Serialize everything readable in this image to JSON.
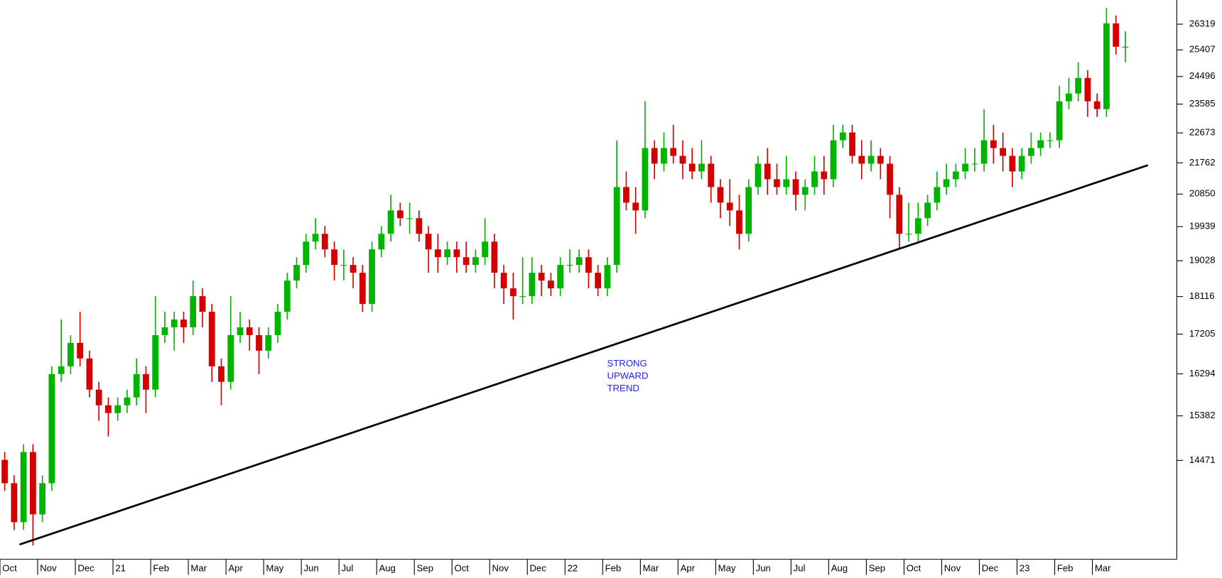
{
  "chart_data": {
    "type": "candlestick",
    "categories": [
      "Oct",
      null,
      null,
      null,
      "Nov",
      null,
      null,
      null,
      "Dec",
      null,
      null,
      null,
      "21",
      null,
      null,
      null,
      "Feb",
      null,
      null,
      null,
      "Mar",
      null,
      null,
      null,
      "Apr",
      null,
      null,
      null,
      "May",
      null,
      null,
      null,
      "Jun",
      null,
      null,
      null,
      "Jul",
      null,
      null,
      null,
      "Aug",
      null,
      null,
      null,
      "Sep",
      null,
      null,
      null,
      "Oct",
      null,
      null,
      null,
      "Nov",
      null,
      null,
      null,
      "Dec",
      null,
      null,
      null,
      "22",
      null,
      null,
      null,
      "Feb",
      null,
      null,
      null,
      "Mar",
      null,
      null,
      null,
      "Apr",
      null,
      null,
      null,
      "May",
      null,
      null,
      null,
      "Jun",
      null,
      null,
      null,
      "Jul",
      null,
      null,
      null,
      "Aug",
      null,
      null,
      null,
      "Sep",
      null,
      null,
      null,
      "Oct",
      null,
      null,
      null,
      "Nov",
      null,
      null,
      null,
      "Dec",
      null,
      null,
      null,
      "23",
      null,
      null,
      null,
      "Feb",
      null,
      null,
      null,
      "Mar",
      null,
      null,
      null
    ],
    "open": [
      14482,
      14025,
      13295,
      14638,
      13438,
      14025,
      16289,
      16464,
      17001,
      16641,
      15945,
      15607,
      15441,
      15607,
      15775,
      16289,
      15945,
      17183,
      17368,
      17554,
      17368,
      18126,
      17743,
      16464,
      16116,
      17183,
      17368,
      17183,
      16820,
      17183,
      17743,
      18518,
      18918,
      19534,
      19744,
      19326,
      18918,
      18918,
      18717,
      17934,
      19326,
      19744,
      20387,
      20171,
      20171,
      19744,
      19326,
      19121,
      19326,
      19121,
      18918,
      19121,
      19534,
      18717,
      18321,
      18126,
      18126,
      18717,
      18518,
      18321,
      18918,
      18918,
      19121,
      18717,
      18321,
      18918,
      21051,
      20606,
      20387,
      22207,
      21737,
      22207,
      21971,
      21737,
      21506,
      21737,
      21051,
      20606,
      20387,
      19744,
      21051,
      21737,
      21278,
      21051,
      21278,
      20828,
      21051,
      21506,
      21278,
      22445,
      22687,
      21971,
      21737,
      21971,
      21737,
      20828,
      19744,
      19744,
      20171,
      20606,
      21051,
      21278,
      21506,
      21737,
      21737,
      22445,
      22207,
      21971,
      21506,
      21971,
      22207,
      22445,
      22445,
      23677,
      23932,
      24449,
      23677,
      23426,
      26347,
      25516
    ],
    "high": [
      14638,
      14176,
      14795,
      14795,
      14176,
      16464,
      17554,
      17183,
      17743,
      16820,
      16116,
      15775,
      15775,
      15945,
      16641,
      16464,
      18126,
      17743,
      17743,
      17743,
      18518,
      18321,
      17934,
      16641,
      18126,
      17743,
      17554,
      17368,
      17368,
      17934,
      18717,
      19121,
      19744,
      20171,
      19956,
      19534,
      19326,
      19121,
      18918,
      19534,
      19956,
      20828,
      20606,
      20606,
      20387,
      19956,
      19744,
      19534,
      19534,
      19534,
      19326,
      20171,
      19744,
      18918,
      18717,
      19121,
      19121,
      18918,
      18717,
      19121,
      19326,
      19326,
      19326,
      18918,
      19121,
      22445,
      21506,
      21051,
      23677,
      22445,
      22687,
      22930,
      22445,
      22207,
      22445,
      21971,
      21278,
      21278,
      20828,
      21278,
      21971,
      22207,
      21737,
      21971,
      21506,
      21278,
      21971,
      21971,
      22930,
      22930,
      22930,
      22445,
      22445,
      22207,
      21971,
      21051,
      20606,
      20606,
      20828,
      21506,
      21737,
      21737,
      22207,
      22207,
      23426,
      22930,
      22687,
      22207,
      22207,
      22687,
      22687,
      22687,
      24189,
      24449,
      24977,
      24711,
      23932,
      26916,
      26630,
      26067
    ],
    "low": [
      13876,
      13154,
      13154,
      12875,
      13295,
      13876,
      16116,
      16289,
      16464,
      15775,
      15277,
      14954,
      15277,
      15441,
      15607,
      15441,
      15775,
      17001,
      16820,
      17001,
      17183,
      17368,
      16116,
      15607,
      15945,
      17001,
      16820,
      16289,
      16641,
      17001,
      17554,
      18321,
      18717,
      19326,
      19121,
      18518,
      18518,
      18321,
      17743,
      17743,
      19121,
      19534,
      19956,
      19744,
      19534,
      18717,
      18717,
      18918,
      18717,
      18717,
      18717,
      18918,
      18321,
      17934,
      17554,
      17934,
      17934,
      18126,
      18126,
      18126,
      18717,
      18717,
      18321,
      18126,
      18126,
      18717,
      20387,
      19744,
      20171,
      21278,
      21506,
      21737,
      21278,
      21278,
      21278,
      20606,
      20171,
      19956,
      19326,
      19534,
      20828,
      20828,
      20828,
      20828,
      20387,
      20387,
      20828,
      20828,
      21051,
      22207,
      21737,
      21278,
      21506,
      21278,
      20171,
      19326,
      19534,
      19534,
      19956,
      20387,
      20828,
      21051,
      21278,
      21506,
      21506,
      21737,
      21506,
      21051,
      21278,
      21737,
      21971,
      22207,
      22207,
      23426,
      23677,
      23177,
      23177,
      23177,
      25245,
      24977
    ],
    "close": [
      14025,
      13295,
      14638,
      13438,
      14025,
      16289,
      16464,
      17001,
      16641,
      15945,
      15607,
      15441,
      15607,
      15775,
      16289,
      15945,
      17183,
      17368,
      17554,
      17368,
      18126,
      17743,
      16464,
      16116,
      17183,
      17368,
      17183,
      16820,
      17183,
      17743,
      18518,
      18918,
      19534,
      19744,
      19326,
      18918,
      18918,
      18717,
      17934,
      19326,
      19744,
      20387,
      20171,
      20171,
      19744,
      19326,
      19121,
      19326,
      19121,
      18918,
      19121,
      19534,
      18717,
      18321,
      18126,
      18126,
      18717,
      18518,
      18321,
      18918,
      18918,
      19121,
      18717,
      18321,
      18918,
      21051,
      20606,
      20387,
      22207,
      21737,
      22207,
      21971,
      21737,
      21506,
      21737,
      21051,
      20606,
      20387,
      19744,
      21051,
      21737,
      21278,
      21051,
      21278,
      20828,
      21051,
      21506,
      21278,
      22445,
      22687,
      21971,
      21737,
      21971,
      21737,
      20828,
      19744,
      19744,
      20171,
      20606,
      21051,
      21278,
      21506,
      21737,
      21737,
      22445,
      22207,
      21971,
      21506,
      21971,
      22207,
      22445,
      22445,
      23677,
      23932,
      24449,
      23677,
      23426,
      26347,
      25516,
      25516
    ],
    "up_color": "#00b400",
    "down_color": "#d40000",
    "log": true,
    "ylim": [
      12636,
      27205
    ],
    "yticks": [
      14471,
      15382,
      16294,
      17205,
      18116,
      19028,
      19939,
      20850,
      21762,
      22673,
      23585,
      24496,
      25407,
      26319
    ],
    "trendline": {
      "x": [
        2.07,
        121.9
      ],
      "y": [
        12894,
        21692
      ],
      "color": "#000000"
    },
    "annotation": {
      "lines": [
        "STRONG",
        "UPWARD",
        "TREND"
      ],
      "color": "#2020ff"
    }
  }
}
